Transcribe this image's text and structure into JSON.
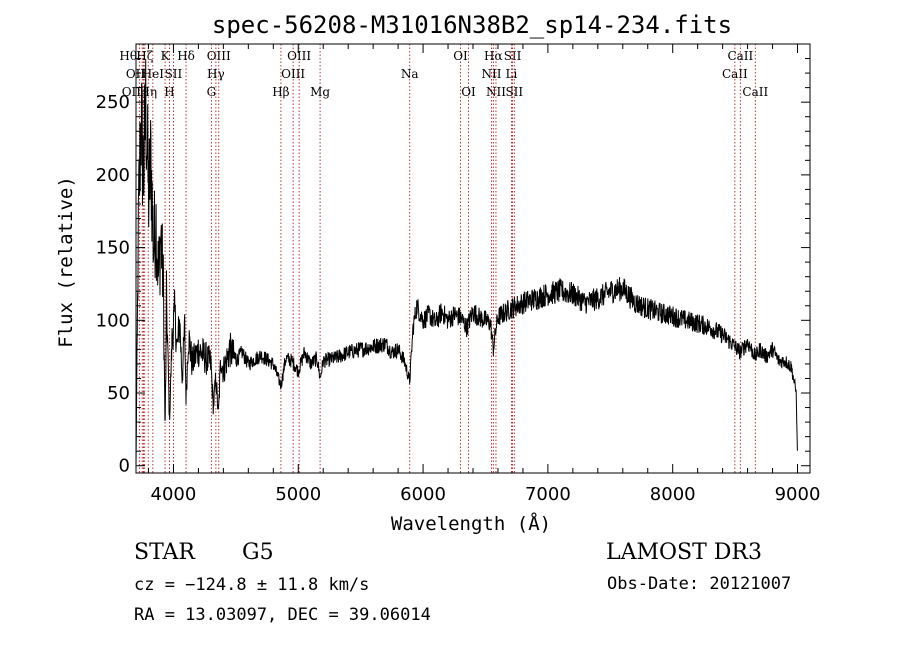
{
  "chart_data": {
    "type": "line",
    "title": "spec-56208-M31016N38B2_sp14-234.fits",
    "xlabel": "Wavelength (Å)",
    "ylabel": "Flux (relative)",
    "xlim": [
      3700,
      9100
    ],
    "ylim": [
      -5,
      290
    ],
    "xticks": [
      4000,
      5000,
      6000,
      7000,
      8000,
      9000
    ],
    "yticks": [
      0,
      50,
      100,
      150,
      200,
      250
    ],
    "grid": false,
    "series": [
      {
        "x": [
          3700,
          3720,
          3740,
          3760,
          3780,
          3800,
          3820,
          3840,
          3860,
          3880,
          3900,
          3920,
          3933,
          3945,
          3968,
          3990,
          4010,
          4030,
          4050,
          4070,
          4090,
          4101,
          4120,
          4150,
          4200,
          4250,
          4300,
          4320,
          4340,
          4360,
          4380,
          4400,
          4450,
          4500,
          4550,
          4600,
          4700,
          4800,
          4861,
          4900,
          4950,
          5000,
          5050,
          5100,
          5150,
          5175,
          5200,
          5300,
          5400,
          5500,
          5600,
          5700,
          5750,
          5800,
          5850,
          5893,
          5920,
          5950,
          6000,
          6050,
          6100,
          6150,
          6200,
          6250,
          6300,
          6350,
          6400,
          6450,
          6500,
          6540,
          6563,
          6580,
          6600,
          6650,
          6700,
          6750,
          6800,
          6900,
          7000,
          7100,
          7200,
          7300,
          7400,
          7500,
          7600,
          7700,
          7800,
          7900,
          8000,
          8100,
          8200,
          8300,
          8400,
          8498,
          8542,
          8600,
          8662,
          8700,
          8750,
          8800,
          8850,
          8900,
          8950,
          8990,
          9000
        ],
        "y": [
          0,
          170,
          240,
          200,
          250,
          185,
          210,
          150,
          170,
          130,
          160,
          120,
          20,
          115,
          30,
          90,
          105,
          80,
          100,
          60,
          95,
          45,
          90,
          70,
          80,
          75,
          70,
          40,
          60,
          35,
          75,
          65,
          80,
          72,
          78,
          70,
          76,
          70,
          55,
          74,
          72,
          65,
          78,
          70,
          74,
          60,
          72,
          74,
          78,
          80,
          82,
          84,
          78,
          80,
          72,
          58,
          95,
          110,
          100,
          104,
          98,
          106,
          100,
          104,
          102,
          95,
          106,
          102,
          100,
          98,
          80,
          92,
          102,
          105,
          108,
          110,
          112,
          115,
          118,
          120,
          118,
          112,
          115,
          120,
          122,
          112,
          108,
          105,
          103,
          100,
          98,
          95,
          90,
          82,
          78,
          85,
          75,
          80,
          75,
          80,
          72,
          72,
          68,
          50,
          5
        ]
      }
    ],
    "lines": [
      {
        "label": "OII",
        "wave": 3727,
        "row": 2,
        "dx": -8
      },
      {
        "label": "Hθ",
        "wave": 3750,
        "row": 0,
        "dx": -14
      },
      {
        "label": "OII",
        "wave": 3760,
        "row": 1,
        "dx": -8
      },
      {
        "label": "Hζ",
        "wave": 3770,
        "row": 0,
        "dx": 0
      },
      {
        "label": "Hη",
        "wave": 3798,
        "row": 2,
        "dx": 0
      },
      {
        "label": "HeI",
        "wave": 3835,
        "row": 1,
        "dx": 0
      },
      {
        "label": "K",
        "wave": 3933,
        "row": 0,
        "dx": 0
      },
      {
        "label": "H",
        "wave": 3968,
        "row": 2,
        "dx": 0
      },
      {
        "label": "SII",
        "wave": 4000,
        "row": 1,
        "dx": 0
      },
      {
        "label": "Hδ",
        "wave": 4101,
        "row": 0,
        "dx": 0
      },
      {
        "label": "OIII",
        "wave": 4363,
        "row": 0,
        "dx": 0
      },
      {
        "label": "Hγ",
        "wave": 4340,
        "row": 1,
        "dx": 0
      },
      {
        "label": "G",
        "wave": 4304,
        "row": 2,
        "dx": 0
      },
      {
        "label": "Hβ",
        "wave": 4861,
        "row": 2,
        "dx": 0
      },
      {
        "label": "OIII",
        "wave": 4959,
        "row": 1,
        "dx": 0
      },
      {
        "label": "OIII",
        "wave": 5007,
        "row": 0,
        "dx": 0
      },
      {
        "label": "Mg",
        "wave": 5175,
        "row": 2,
        "dx": 0
      },
      {
        "label": "Na",
        "wave": 5893,
        "row": 1,
        "dx": 0
      },
      {
        "label": "OI",
        "wave": 6300,
        "row": 0,
        "dx": 0
      },
      {
        "label": "OI",
        "wave": 6364,
        "row": 2,
        "dx": 0
      },
      {
        "label": "NII",
        "wave": 6548,
        "row": 1,
        "dx": 0
      },
      {
        "label": "NII",
        "wave": 6584,
        "row": 2,
        "dx": 0
      },
      {
        "label": "Hα",
        "wave": 6563,
        "row": 0,
        "dx": 0
      },
      {
        "label": "SII",
        "wave": 6717,
        "row": 0,
        "dx": 0
      },
      {
        "label": "Li",
        "wave": 6708,
        "row": 1,
        "dx": 0
      },
      {
        "label": "SII",
        "wave": 6731,
        "row": 2,
        "dx": 0
      },
      {
        "label": "CaII",
        "wave": 8498,
        "row": 1,
        "dx": 0
      },
      {
        "label": "CaII",
        "wave": 8542,
        "row": 0,
        "dx": 0
      },
      {
        "label": "CaII",
        "wave": 8662,
        "row": 2,
        "dx": 0
      }
    ]
  },
  "info": {
    "class": "STAR",
    "subclass": "G5",
    "survey": "LAMOST DR3",
    "cz": "cz = −124.8 ± 11.8 km/s",
    "obs_date": "Obs-Date: 20121007",
    "coords": "RA =  13.03097, DEC =  39.06014"
  }
}
